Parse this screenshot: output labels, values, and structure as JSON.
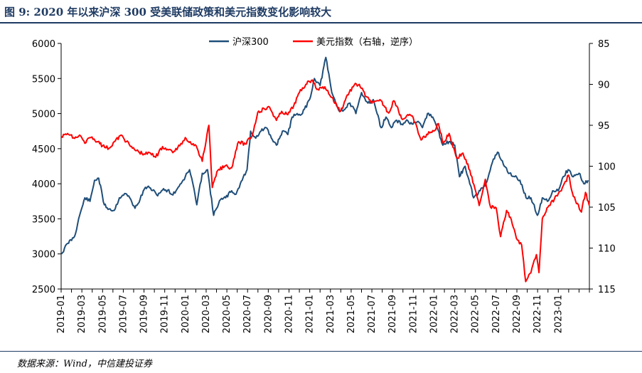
{
  "header": {
    "title": "图 9: 2020 年以来沪深 300 受美联储政策和美元指数变化影响较大"
  },
  "footer": {
    "source": "数据来源：Wind，中信建投证券"
  },
  "chart_data": {
    "type": "line",
    "title": "图 9: 2020 年以来沪深 300 受美联储政策和美元指数变化影响较大",
    "legend_position": "top-center",
    "grid": false,
    "x_tick_labels": [
      "2019-01",
      "2019-03",
      "2019-05",
      "2019-07",
      "2019-09",
      "2019-11",
      "2020-01",
      "2020-03",
      "2020-05",
      "2020-07",
      "2020-09",
      "2020-11",
      "2021-01",
      "2021-03",
      "2021-05",
      "2021-07",
      "2021-09",
      "2021-11",
      "2022-01",
      "2022-03",
      "2022-05",
      "2022-07",
      "2022-09",
      "2022-11",
      "2023-01"
    ],
    "x_range": [
      "2019-01",
      "2023-04"
    ],
    "y_left": {
      "min": 2500,
      "max": 6000,
      "ticks": [
        "2500",
        "3000",
        "3500",
        "4000",
        "4500",
        "5000",
        "5500",
        "6000"
      ]
    },
    "y_right": {
      "min": 85,
      "max": 115,
      "reversed": true,
      "ticks": [
        "85",
        "90",
        "95",
        "100",
        "105",
        "110",
        "115"
      ]
    },
    "series": [
      {
        "name": "沪深300",
        "axis": "left",
        "color": "#1f4e79",
        "points": [
          [
            "2019-01-02",
            3000
          ],
          [
            "2019-01-20",
            3150
          ],
          [
            "2019-02-10",
            3250
          ],
          [
            "2019-02-25",
            3550
          ],
          [
            "2019-03-10",
            3800
          ],
          [
            "2019-03-25",
            3750
          ],
          [
            "2019-04-08",
            4050
          ],
          [
            "2019-04-20",
            4080
          ],
          [
            "2019-05-06",
            3700
          ],
          [
            "2019-05-20",
            3640
          ],
          [
            "2019-06-05",
            3620
          ],
          [
            "2019-06-20",
            3800
          ],
          [
            "2019-07-05",
            3860
          ],
          [
            "2019-07-20",
            3800
          ],
          [
            "2019-08-05",
            3650
          ],
          [
            "2019-08-20",
            3780
          ],
          [
            "2019-09-05",
            3950
          ],
          [
            "2019-09-20",
            3940
          ],
          [
            "2019-10-08",
            3840
          ],
          [
            "2019-10-25",
            3910
          ],
          [
            "2019-11-10",
            3910
          ],
          [
            "2019-11-25",
            3840
          ],
          [
            "2019-12-10",
            3950
          ],
          [
            "2019-12-31",
            4100
          ],
          [
            "2020-01-13",
            4200
          ],
          [
            "2020-01-23",
            4000
          ],
          [
            "2020-02-04",
            3700
          ],
          [
            "2020-02-20",
            4150
          ],
          [
            "2020-03-05",
            4200
          ],
          [
            "2020-03-23",
            3550
          ],
          [
            "2020-04-10",
            3760
          ],
          [
            "2020-04-28",
            3800
          ],
          [
            "2020-05-15",
            3900
          ],
          [
            "2020-05-28",
            3850
          ],
          [
            "2020-06-10",
            4000
          ],
          [
            "2020-06-30",
            4200
          ],
          [
            "2020-07-10",
            4750
          ],
          [
            "2020-07-25",
            4650
          ],
          [
            "2020-08-10",
            4750
          ],
          [
            "2020-08-25",
            4800
          ],
          [
            "2020-09-10",
            4650
          ],
          [
            "2020-09-25",
            4550
          ],
          [
            "2020-10-12",
            4750
          ],
          [
            "2020-10-28",
            4700
          ],
          [
            "2020-11-10",
            4950
          ],
          [
            "2020-11-25",
            5000
          ],
          [
            "2020-12-10",
            5000
          ],
          [
            "2020-12-31",
            5200
          ],
          [
            "2021-01-15",
            5500
          ],
          [
            "2021-02-01",
            5400
          ],
          [
            "2021-02-18",
            5800
          ],
          [
            "2021-03-05",
            5300
          ],
          [
            "2021-03-25",
            5050
          ],
          [
            "2021-04-10",
            5050
          ],
          [
            "2021-04-28",
            5150
          ],
          [
            "2021-05-15",
            5000
          ],
          [
            "2021-06-01",
            5300
          ],
          [
            "2021-06-20",
            5150
          ],
          [
            "2021-07-05",
            5200
          ],
          [
            "2021-07-28",
            4800
          ],
          [
            "2021-08-12",
            4950
          ],
          [
            "2021-08-28",
            4800
          ],
          [
            "2021-09-10",
            4900
          ],
          [
            "2021-09-28",
            4850
          ],
          [
            "2021-10-15",
            4900
          ],
          [
            "2021-10-28",
            4850
          ],
          [
            "2021-11-12",
            4880
          ],
          [
            "2021-11-28",
            4800
          ],
          [
            "2021-12-12",
            5000
          ],
          [
            "2021-12-28",
            4950
          ],
          [
            "2022-01-10",
            4800
          ],
          [
            "2022-01-27",
            4550
          ],
          [
            "2022-02-15",
            4600
          ],
          [
            "2022-03-01",
            4550
          ],
          [
            "2022-03-15",
            4100
          ],
          [
            "2022-04-01",
            4250
          ],
          [
            "2022-04-26",
            3800
          ],
          [
            "2022-05-15",
            3900
          ],
          [
            "2022-06-01",
            4000
          ],
          [
            "2022-06-20",
            4300
          ],
          [
            "2022-07-05",
            4450
          ],
          [
            "2022-07-25",
            4250
          ],
          [
            "2022-08-10",
            4150
          ],
          [
            "2022-08-25",
            4100
          ],
          [
            "2022-09-10",
            4050
          ],
          [
            "2022-09-28",
            3800
          ],
          [
            "2022-10-12",
            3800
          ],
          [
            "2022-10-31",
            3550
          ],
          [
            "2022-11-15",
            3800
          ],
          [
            "2022-11-30",
            3750
          ],
          [
            "2022-12-15",
            3900
          ],
          [
            "2022-12-31",
            3900
          ],
          [
            "2023-01-15",
            4100
          ],
          [
            "2023-01-30",
            4200
          ],
          [
            "2023-02-15",
            4100
          ],
          [
            "2023-03-01",
            4150
          ],
          [
            "2023-03-15",
            4000
          ],
          [
            "2023-03-28",
            4050
          ]
        ]
      },
      {
        "name": "美元指数（右轴，逆序）",
        "axis": "right",
        "color": "#ff0000",
        "points": [
          [
            "2019-01-02",
            96.4
          ],
          [
            "2019-01-20",
            96.0
          ],
          [
            "2019-02-10",
            96.6
          ],
          [
            "2019-02-25",
            96.2
          ],
          [
            "2019-03-10",
            97.2
          ],
          [
            "2019-03-25",
            96.5
          ],
          [
            "2019-04-15",
            97.0
          ],
          [
            "2019-05-01",
            97.5
          ],
          [
            "2019-05-20",
            97.8
          ],
          [
            "2019-06-05",
            97.0
          ],
          [
            "2019-06-25",
            96.2
          ],
          [
            "2019-07-10",
            97.0
          ],
          [
            "2019-07-28",
            97.8
          ],
          [
            "2019-08-15",
            98.2
          ],
          [
            "2019-09-01",
            98.5
          ],
          [
            "2019-09-20",
            98.4
          ],
          [
            "2019-10-05",
            98.9
          ],
          [
            "2019-10-25",
            97.6
          ],
          [
            "2019-11-12",
            98.0
          ],
          [
            "2019-11-28",
            98.2
          ],
          [
            "2019-12-15",
            97.5
          ],
          [
            "2019-12-31",
            96.5
          ],
          [
            "2020-01-15",
            97.0
          ],
          [
            "2020-02-05",
            97.8
          ],
          [
            "2020-02-20",
            99.4
          ],
          [
            "2020-03-09",
            95.0
          ],
          [
            "2020-03-19",
            102.6
          ],
          [
            "2020-04-05",
            100.5
          ],
          [
            "2020-04-25",
            100.0
          ],
          [
            "2020-05-15",
            100.2
          ],
          [
            "2020-06-05",
            97.0
          ],
          [
            "2020-06-25",
            97.3
          ],
          [
            "2020-07-15",
            96.2
          ],
          [
            "2020-07-31",
            93.4
          ],
          [
            "2020-08-20",
            93.0
          ],
          [
            "2020-09-05",
            92.8
          ],
          [
            "2020-09-25",
            94.4
          ],
          [
            "2020-10-10",
            93.3
          ],
          [
            "2020-10-28",
            93.7
          ],
          [
            "2020-11-15",
            92.6
          ],
          [
            "2020-12-01",
            91.0
          ],
          [
            "2020-12-20",
            90.0
          ],
          [
            "2021-01-06",
            89.5
          ],
          [
            "2021-01-25",
            90.6
          ],
          [
            "2021-02-15",
            90.3
          ],
          [
            "2021-03-05",
            91.6
          ],
          [
            "2021-03-31",
            93.3
          ],
          [
            "2021-04-20",
            91.3
          ],
          [
            "2021-05-10",
            90.1
          ],
          [
            "2021-05-25",
            90.0
          ],
          [
            "2021-06-15",
            91.5
          ],
          [
            "2021-07-01",
            92.3
          ],
          [
            "2021-07-28",
            92.0
          ],
          [
            "2021-08-20",
            93.5
          ],
          [
            "2021-09-05",
            92.0
          ],
          [
            "2021-09-30",
            94.3
          ],
          [
            "2021-10-15",
            93.7
          ],
          [
            "2021-11-01",
            94.1
          ],
          [
            "2021-11-24",
            96.8
          ],
          [
            "2021-12-10",
            96.1
          ],
          [
            "2021-12-31",
            95.7
          ],
          [
            "2022-01-14",
            94.8
          ],
          [
            "2022-01-28",
            97.2
          ],
          [
            "2022-02-15",
            96.0
          ],
          [
            "2022-03-07",
            99.0
          ],
          [
            "2022-03-25",
            98.4
          ],
          [
            "2022-04-15",
            100.5
          ],
          [
            "2022-05-12",
            104.8
          ],
          [
            "2022-05-30",
            101.6
          ],
          [
            "2022-06-15",
            105.0
          ],
          [
            "2022-07-01",
            105.1
          ],
          [
            "2022-07-14",
            108.6
          ],
          [
            "2022-08-01",
            105.4
          ],
          [
            "2022-08-15",
            106.5
          ],
          [
            "2022-08-30",
            108.8
          ],
          [
            "2022-09-15",
            109.6
          ],
          [
            "2022-09-27",
            114.1
          ],
          [
            "2022-10-12",
            113.0
          ],
          [
            "2022-10-28",
            110.8
          ],
          [
            "2022-11-05",
            113.0
          ],
          [
            "2022-11-15",
            106.4
          ],
          [
            "2022-12-01",
            105.0
          ],
          [
            "2022-12-20",
            104.0
          ],
          [
            "2023-01-10",
            103.0
          ],
          [
            "2023-01-31",
            101.1
          ],
          [
            "2023-02-15",
            103.7
          ],
          [
            "2023-03-08",
            105.6
          ],
          [
            "2023-03-20",
            103.2
          ],
          [
            "2023-03-31",
            104.8
          ]
        ]
      }
    ]
  }
}
